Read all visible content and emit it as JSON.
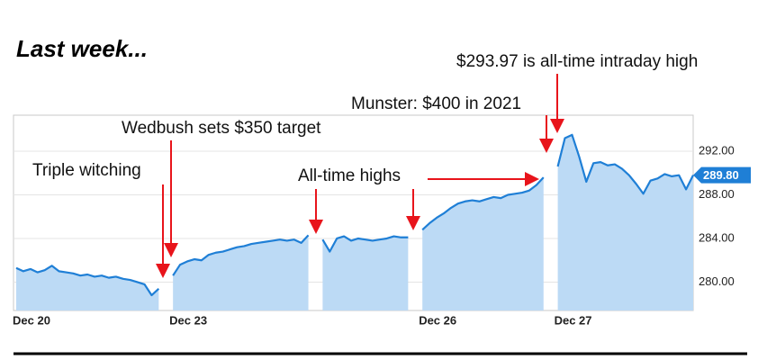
{
  "chart_data": {
    "type": "line",
    "title": "Last week...",
    "categories": [
      "Dec 20",
      null,
      null,
      null,
      null,
      null,
      null,
      null,
      null,
      null,
      null,
      null,
      null,
      null,
      null,
      null,
      null,
      null,
      null,
      null,
      null,
      null,
      "Dec 23",
      null,
      null,
      null,
      null,
      null,
      null,
      null,
      null,
      null,
      null,
      null,
      null,
      null,
      null,
      null,
      null,
      null,
      null,
      null,
      null,
      null,
      null,
      null,
      null,
      null,
      null,
      null,
      null,
      null,
      null,
      null,
      null,
      null,
      null,
      "Dec 26",
      null,
      null,
      null,
      null,
      null,
      null,
      null,
      null,
      null,
      null,
      null,
      null,
      null,
      null,
      null,
      null,
      null,
      null,
      "Dec 27",
      null,
      null,
      null,
      null,
      null,
      null,
      null,
      null,
      null,
      null,
      null,
      null,
      null,
      null,
      null,
      null,
      null,
      null,
      null
    ],
    "series": [
      {
        "color": "#1f7fd6",
        "values": [
          281.3,
          281.0,
          281.2,
          280.9,
          281.1,
          281.5,
          281.0,
          280.9,
          280.8,
          280.6,
          280.7,
          280.5,
          280.6,
          280.4,
          280.5,
          280.3,
          280.2,
          280.0,
          279.8,
          278.8,
          279.4,
          null,
          280.6,
          281.6,
          281.9,
          282.1,
          282.0,
          282.5,
          282.7,
          282.8,
          283.0,
          283.2,
          283.3,
          283.5,
          283.6,
          283.7,
          283.8,
          283.9,
          283.8,
          283.9,
          283.6,
          284.3,
          null,
          283.9,
          282.8,
          284.0,
          284.2,
          283.8,
          284.0,
          283.9,
          283.8,
          283.9,
          284.0,
          284.2,
          284.1,
          284.1,
          null,
          284.8,
          285.4,
          285.9,
          286.3,
          286.8,
          287.2,
          287.4,
          287.5,
          287.4,
          287.6,
          287.8,
          287.7,
          288.0,
          288.1,
          288.2,
          288.4,
          288.9,
          289.6,
          null,
          290.6,
          293.2,
          293.5,
          291.5,
          289.2,
          290.9,
          291.0,
          290.7,
          290.8,
          290.4,
          289.8,
          289.0,
          288.1,
          289.3,
          289.5,
          289.9,
          289.7,
          289.8,
          288.5,
          289.8
        ]
      }
    ],
    "area_color": "#bcdaf5",
    "ylim": [
      277.4,
      295.3
    ],
    "yticks": [
      {
        "value": 280,
        "label": "280.00"
      },
      {
        "value": 284,
        "label": "284.00"
      },
      {
        "value": 288,
        "label": "288.00"
      },
      {
        "value": 292,
        "label": "292.00"
      }
    ],
    "grid": true,
    "price_tag": {
      "value": 289.8,
      "label": "289.80"
    },
    "annotations": [
      {
        "text": "Triple witching"
      },
      {
        "text": "Wedbush sets $350 target"
      },
      {
        "text": "All-time highs"
      },
      {
        "text": "Munster: $400 in 2021"
      },
      {
        "text": "$293.97 is all-time intraday high"
      }
    ],
    "annotation_color": "#e8141b"
  }
}
